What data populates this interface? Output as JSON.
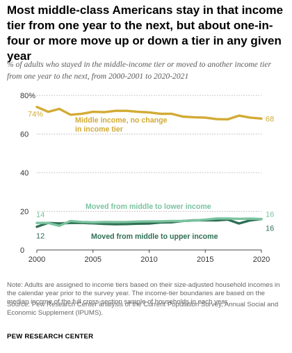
{
  "title": "Most middle-class Americans stay in that income tier from one year to the next, but about one-in-four or more move up or down a tier in any given year",
  "subtitle": "% of adults who stayed in the middle-income tier or moved to another income tier from one year to the next, from 2000-2001 to 2020-2021",
  "note": "Note: Adults are assigned to income tiers based on their size-adjusted household incomes in the calendar year prior to the survey year. The income-tier boundaries are based on the median income of the full cross-section sample of households in each year.",
  "source": "Source: Pew Research Center analysis of the Current Population Survey, Annual Social and Economic Supplement (IPUMS).",
  "brand": "PEW RESEARCH CENTER",
  "chart_data": {
    "type": "line",
    "x": [
      2000,
      2001,
      2002,
      2003,
      2004,
      2005,
      2006,
      2007,
      2008,
      2009,
      2010,
      2011,
      2012,
      2013,
      2014,
      2015,
      2016,
      2017,
      2018,
      2019,
      2020
    ],
    "xlim": [
      2000,
      2020
    ],
    "ylim": [
      0,
      80
    ],
    "x_ticks": [
      {
        "value": 2000,
        "label": "2000"
      },
      {
        "value": 2005,
        "label": "2005"
      },
      {
        "value": 2010,
        "label": "2010"
      },
      {
        "value": 2015,
        "label": "2015"
      },
      {
        "value": 2020,
        "label": "2020"
      }
    ],
    "y_ticks": [
      {
        "value": 0,
        "label": "0"
      },
      {
        "value": 20,
        "label": "20"
      },
      {
        "value": 40,
        "label": "40"
      },
      {
        "value": 60,
        "label": "60"
      },
      {
        "value": 80,
        "label": "80%"
      }
    ],
    "grid": "horizontal dotted",
    "series": [
      {
        "key": "middle",
        "name": "Middle income, no change in income tier",
        "label_lines": [
          "Middle income, no change",
          "in income tier"
        ],
        "color": "#d2ab35",
        "values": [
          74,
          71.5,
          73,
          70,
          70.5,
          71.5,
          71.3,
          72,
          72,
          71.5,
          71.2,
          70.5,
          70.5,
          69,
          68.7,
          68.5,
          67.7,
          67.6,
          69.5,
          68.5,
          68
        ],
        "start_label": "74%",
        "end_label": "68"
      },
      {
        "key": "lower",
        "name": "Moved from middle to lower income",
        "label_lines": [
          "Moved from middle to lower income"
        ],
        "color": "#7bc3a0",
        "values": [
          14,
          14,
          12.5,
          15,
          14.5,
          14.3,
          14.5,
          14.4,
          14.5,
          14.7,
          14.8,
          14.8,
          15,
          15,
          15.2,
          15.7,
          16.3,
          16.3,
          16.1,
          16.2,
          16
        ],
        "start_label": "14",
        "end_label": "16"
      },
      {
        "key": "upper",
        "name": "Moved from middle to upper income",
        "label_lines": [
          "Moved from middle to upper income"
        ],
        "color": "#2f6f53",
        "values": [
          12,
          14,
          13.7,
          14,
          14,
          13.8,
          13.5,
          13.3,
          13.4,
          13.6,
          13.7,
          14.2,
          14.3,
          15,
          15.3,
          15.4,
          15.3,
          15.7,
          13.7,
          15.3,
          16
        ],
        "start_label": "12",
        "end_label": "16"
      }
    ]
  }
}
